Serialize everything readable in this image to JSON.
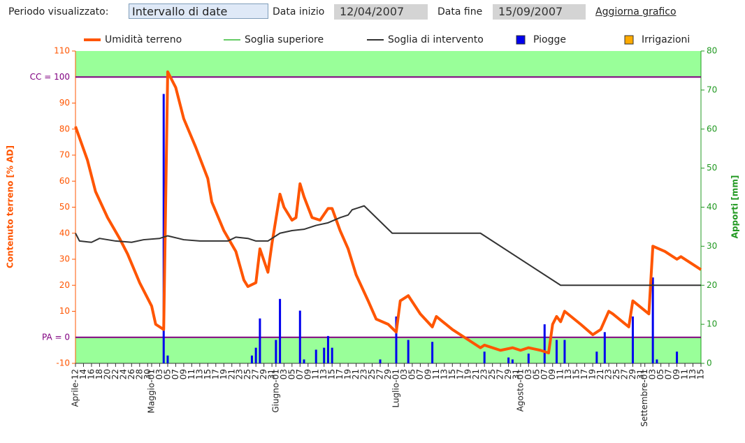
{
  "controls": {
    "period_label": "Periodo visualizzato:",
    "period_value": "Intervallo di date",
    "start_label": "Data inizio",
    "start_value": "12/04/2007",
    "end_label": "Data fine",
    "end_value": "15/09/2007",
    "refresh_link": "Aggiorna grafico"
  },
  "chart_data": {
    "type": "line",
    "y_label": "Contenuto terreno [% AD]",
    "y2_label": "Apporti [mm]",
    "xlim": [
      0,
      156
    ],
    "ylim": [
      -10,
      110
    ],
    "y2lim": [
      0,
      80
    ],
    "bands": [
      [
        100,
        110
      ],
      [
        -10,
        0
      ]
    ],
    "band_color": "#99ff99",
    "yticks": [
      -10,
      {
        "value": 0,
        "label": "PA = 0"
      },
      10,
      20,
      30,
      40,
      50,
      60,
      70,
      80,
      90,
      {
        "value": 100,
        "label": "CC = 100"
      },
      110
    ],
    "y2ticks": [
      0,
      10,
      20,
      30,
      40,
      50,
      60,
      70,
      80
    ],
    "xticks": [
      {
        "value": 0,
        "label": "Aprile-12"
      },
      {
        "value": 2,
        "label": "14"
      },
      {
        "value": 4,
        "label": "16"
      },
      {
        "value": 6,
        "label": "18"
      },
      {
        "value": 8,
        "label": "20"
      },
      {
        "value": 10,
        "label": "22"
      },
      {
        "value": 12,
        "label": "24"
      },
      {
        "value": 14,
        "label": "26"
      },
      {
        "value": 16,
        "label": "28"
      },
      {
        "value": 18,
        "label": "30"
      },
      {
        "value": 19,
        "label": "Maggio-01"
      },
      {
        "value": 21,
        "label": "03"
      },
      {
        "value": 23,
        "label": "05"
      },
      {
        "value": 25,
        "label": "07"
      },
      {
        "value": 27,
        "label": "09"
      },
      {
        "value": 29,
        "label": "11"
      },
      {
        "value": 31,
        "label": "13"
      },
      {
        "value": 33,
        "label": "15"
      },
      {
        "value": 35,
        "label": "17"
      },
      {
        "value": 37,
        "label": "19"
      },
      {
        "value": 39,
        "label": "21"
      },
      {
        "value": 41,
        "label": "23"
      },
      {
        "value": 43,
        "label": "25"
      },
      {
        "value": 45,
        "label": "27"
      },
      {
        "value": 47,
        "label": "29"
      },
      {
        "value": 49,
        "label": "31"
      },
      {
        "value": 50,
        "label": "Giugno-01"
      },
      {
        "value": 52,
        "label": "03"
      },
      {
        "value": 54,
        "label": "05"
      },
      {
        "value": 56,
        "label": "07"
      },
      {
        "value": 58,
        "label": "09"
      },
      {
        "value": 60,
        "label": "11"
      },
      {
        "value": 62,
        "label": "13"
      },
      {
        "value": 64,
        "label": "15"
      },
      {
        "value": 66,
        "label": "17"
      },
      {
        "value": 68,
        "label": "19"
      },
      {
        "value": 70,
        "label": "21"
      },
      {
        "value": 72,
        "label": "23"
      },
      {
        "value": 74,
        "label": "25"
      },
      {
        "value": 76,
        "label": "27"
      },
      {
        "value": 78,
        "label": "29"
      },
      {
        "value": 80,
        "label": "Luglio-01"
      },
      {
        "value": 82,
        "label": "03"
      },
      {
        "value": 84,
        "label": "05"
      },
      {
        "value": 86,
        "label": "07"
      },
      {
        "value": 88,
        "label": "09"
      },
      {
        "value": 90,
        "label": "11"
      },
      {
        "value": 92,
        "label": "13"
      },
      {
        "value": 94,
        "label": "15"
      },
      {
        "value": 96,
        "label": "17"
      },
      {
        "value": 98,
        "label": "19"
      },
      {
        "value": 100,
        "label": "21"
      },
      {
        "value": 102,
        "label": "23"
      },
      {
        "value": 104,
        "label": "25"
      },
      {
        "value": 106,
        "label": "27"
      },
      {
        "value": 108,
        "label": "29"
      },
      {
        "value": 110,
        "label": "31"
      },
      {
        "value": 111,
        "label": "Agosto-01"
      },
      {
        "value": 113,
        "label": "03"
      },
      {
        "value": 115,
        "label": "05"
      },
      {
        "value": 117,
        "label": "07"
      },
      {
        "value": 119,
        "label": "09"
      },
      {
        "value": 121,
        "label": "11"
      },
      {
        "value": 123,
        "label": "13"
      },
      {
        "value": 125,
        "label": "15"
      },
      {
        "value": 127,
        "label": "17"
      },
      {
        "value": 129,
        "label": "19"
      },
      {
        "value": 131,
        "label": "21"
      },
      {
        "value": 133,
        "label": "23"
      },
      {
        "value": 135,
        "label": "25"
      },
      {
        "value": 137,
        "label": "27"
      },
      {
        "value": 139,
        "label": "29"
      },
      {
        "value": 141,
        "label": "31"
      },
      {
        "value": 142,
        "label": "Settembre-01"
      },
      {
        "value": 144,
        "label": "03"
      },
      {
        "value": 146,
        "label": "05"
      },
      {
        "value": 148,
        "label": "07"
      },
      {
        "value": 150,
        "label": "09"
      },
      {
        "value": 152,
        "label": "11"
      },
      {
        "value": 154,
        "label": "13"
      },
      {
        "value": 156,
        "label": "15"
      }
    ],
    "series": [
      {
        "name": "Umidità terreno",
        "type": "line",
        "color": "#ff5500",
        "x": [
          0,
          3,
          5,
          8,
          11,
          13,
          16,
          19,
          20,
          22,
          23,
          25,
          27,
          30,
          33,
          34,
          37,
          40,
          42,
          43,
          45,
          46,
          48,
          49,
          51,
          52,
          54,
          55,
          56,
          57,
          59,
          61,
          63,
          64,
          66,
          68,
          70,
          73,
          75,
          78,
          80,
          81,
          83,
          86,
          89,
          90,
          94,
          97,
          101,
          102,
          106,
          109,
          111,
          113,
          116,
          118,
          119,
          120,
          121,
          122,
          126,
          129,
          131,
          133,
          134,
          138,
          139,
          143,
          144,
          147,
          150,
          151,
          156
        ],
        "values": [
          81,
          68,
          56,
          46,
          38,
          32,
          21,
          12,
          5,
          3,
          102,
          96,
          84,
          73,
          61,
          52,
          41,
          33,
          22,
          19.5,
          21,
          34,
          25,
          36,
          55,
          50,
          45,
          46,
          59,
          54,
          46,
          45,
          49.5,
          49.5,
          41,
          34,
          24,
          14,
          7,
          5,
          2,
          14,
          16,
          9,
          4,
          8,
          3,
          0,
          -4,
          -3,
          -5,
          -4,
          -5,
          -4,
          -5,
          -6,
          5,
          8,
          6,
          10,
          5,
          1,
          3,
          10,
          9,
          4,
          14,
          9,
          35,
          33,
          30,
          31,
          26
        ]
      },
      {
        "name": "Soglia superiore",
        "type": "line",
        "color": "#66cc66",
        "x": [],
        "values": []
      },
      {
        "name": "Soglia di intervento",
        "type": "line",
        "color": "#333333",
        "x": [
          0,
          1,
          4,
          6,
          10,
          14,
          17,
          21,
          23,
          27,
          31,
          38,
          40,
          43,
          45,
          48,
          51,
          54,
          57,
          60,
          63,
          66,
          68,
          69,
          72,
          79,
          101,
          121,
          156
        ],
        "values": [
          40,
          37,
          36.5,
          38,
          37,
          36.5,
          37.5,
          38,
          39,
          37.5,
          37,
          37,
          38.5,
          38,
          37,
          37,
          40,
          41,
          41.5,
          43,
          44,
          46,
          47,
          49,
          50.5,
          40,
          40,
          20,
          20
        ]
      },
      {
        "name": "Piogge",
        "type": "bar",
        "axis": "y2",
        "color": "#0000ee",
        "x": [
          22,
          23,
          44,
          45,
          46,
          50,
          51,
          56,
          57,
          60,
          62,
          63,
          64,
          76,
          80,
          83,
          89,
          102,
          108,
          109,
          113,
          117,
          120,
          122,
          130,
          132,
          139,
          144,
          145,
          150
        ],
        "values": [
          69,
          2,
          2,
          4,
          11.5,
          6,
          16.5,
          13.5,
          1,
          3.5,
          4,
          7,
          4,
          1,
          12,
          6,
          5.5,
          3,
          1.5,
          1,
          2.5,
          10,
          6,
          6,
          3,
          8,
          12,
          22,
          1,
          3
        ]
      },
      {
        "name": "Irrigazioni",
        "type": "bar",
        "axis": "y2",
        "color": "#ffaa00",
        "x": [],
        "values": []
      }
    ]
  }
}
